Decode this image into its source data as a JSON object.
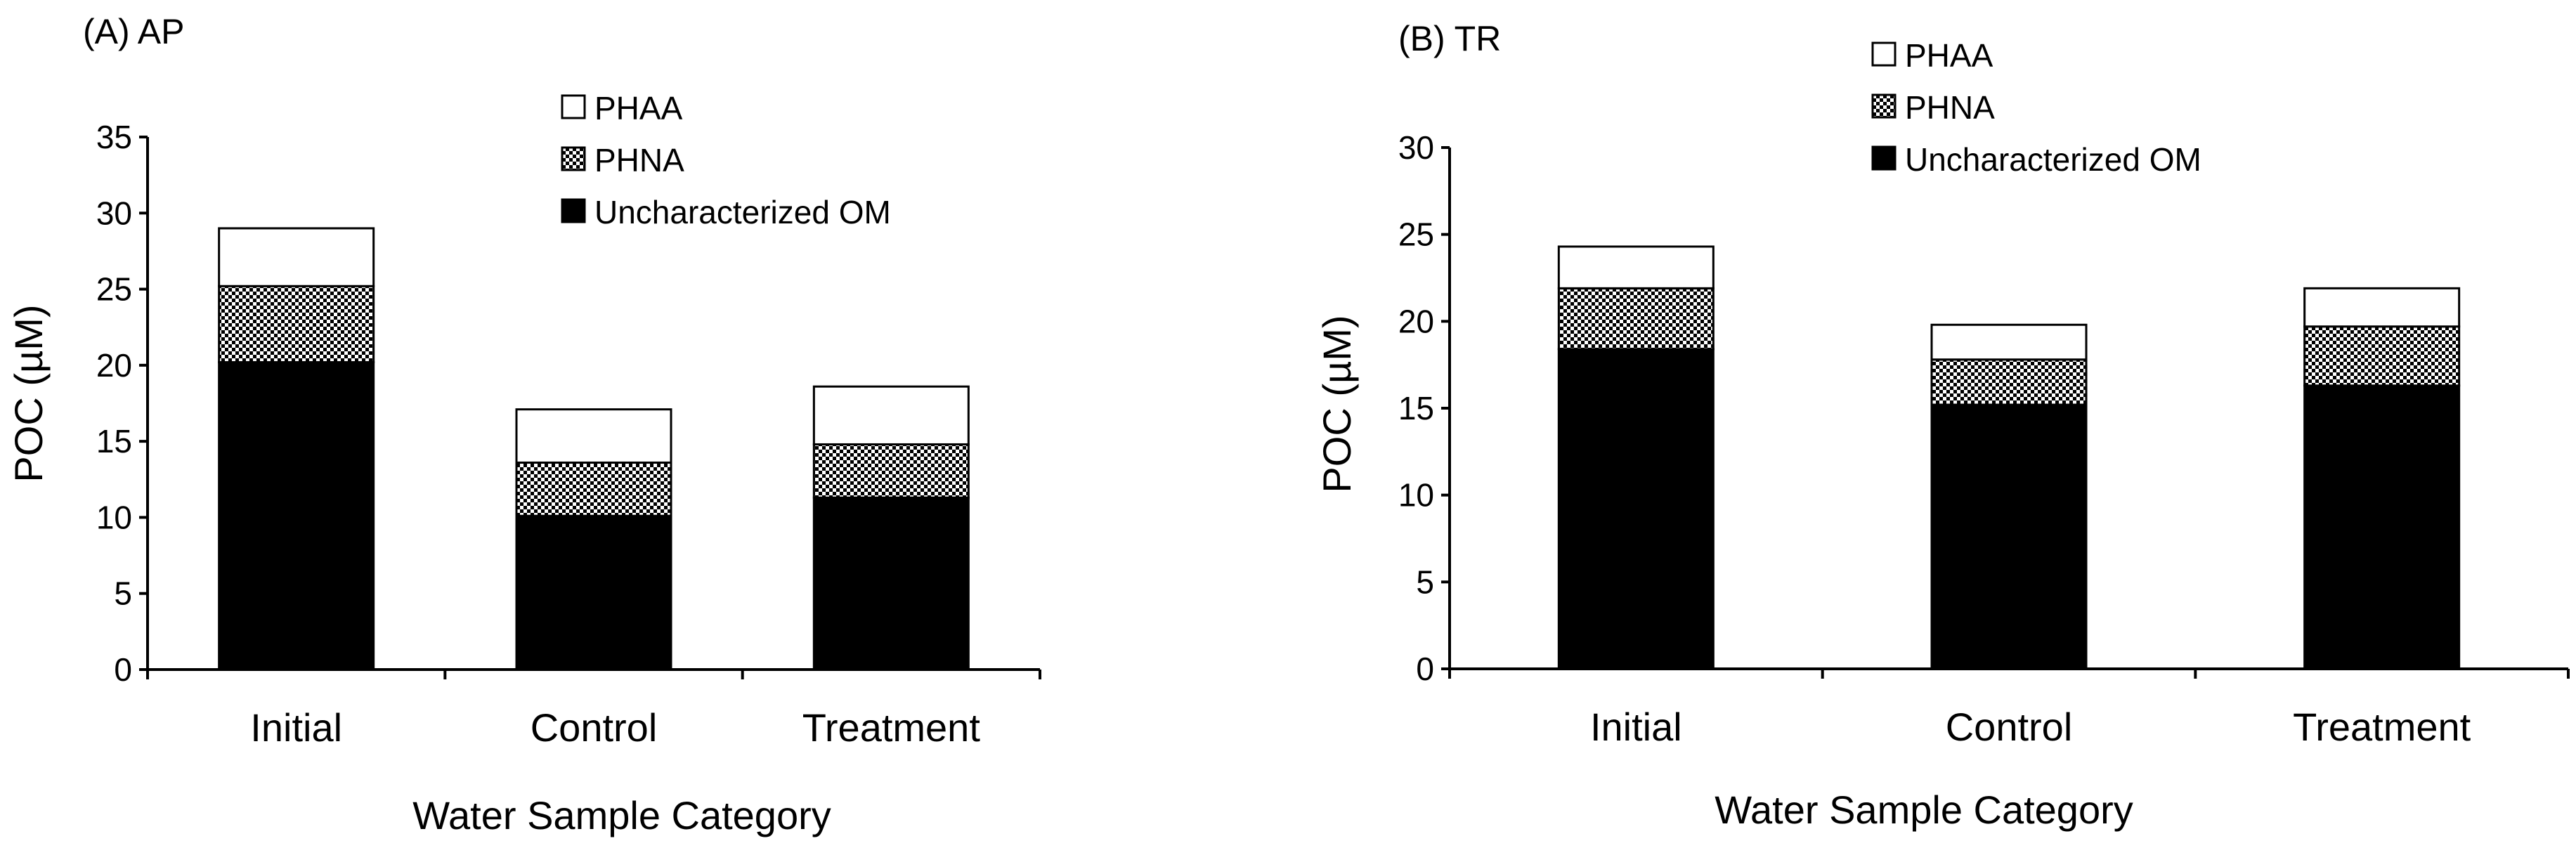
{
  "chart_data": [
    {
      "type": "bar",
      "stacked": true,
      "title": "(A) AP",
      "xlabel": "Water Sample Category",
      "ylabel": "POC (µM)",
      "ylim": [
        0,
        35
      ],
      "yticks": [
        0,
        5,
        10,
        15,
        20,
        25,
        30,
        35
      ],
      "categories": [
        "Initial",
        "Control",
        "Treatment"
      ],
      "series": [
        {
          "name": "Uncharacterized OM",
          "pattern": "solid-black",
          "values": [
            20.2,
            10.1,
            11.3
          ]
        },
        {
          "name": "PHNA",
          "pattern": "checker",
          "values": [
            5.0,
            3.5,
            3.5
          ]
        },
        {
          "name": "PHAA",
          "pattern": "white",
          "values": [
            3.8,
            3.5,
            3.8
          ]
        }
      ],
      "legend": [
        "PHAA",
        "PHNA",
        "Uncharacterized OM"
      ],
      "legend_position": "top-right"
    },
    {
      "type": "bar",
      "stacked": true,
      "title": "(B) TR",
      "xlabel": "Water Sample Category",
      "ylabel": "POC (µM)",
      "ylim": [
        0,
        30
      ],
      "yticks": [
        0,
        5,
        10,
        15,
        20,
        25,
        30
      ],
      "categories": [
        "Initial",
        "Control",
        "Treatment"
      ],
      "series": [
        {
          "name": "Uncharacterized OM",
          "pattern": "solid-black",
          "values": [
            18.4,
            15.2,
            16.3
          ]
        },
        {
          "name": "PHNA",
          "pattern": "checker",
          "values": [
            3.5,
            2.6,
            3.4
          ]
        },
        {
          "name": "PHAA",
          "pattern": "white",
          "values": [
            2.4,
            2.0,
            2.2
          ]
        }
      ],
      "legend": [
        "PHAA",
        "PHNA",
        "Uncharacterized OM"
      ],
      "legend_position": "top-right"
    }
  ]
}
